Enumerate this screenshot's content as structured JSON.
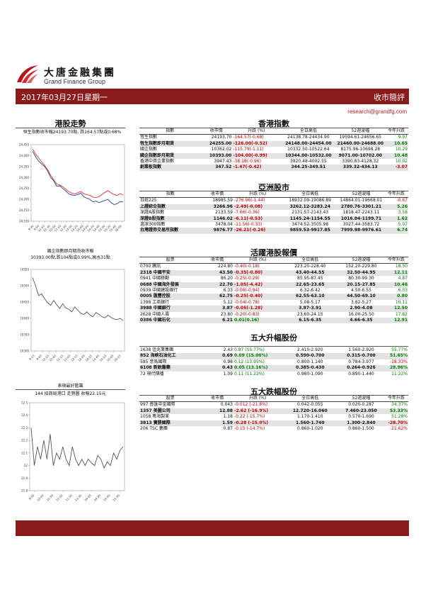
{
  "header": {
    "logo_cn": "大唐金融集團",
    "logo_en": "Grand Finance Group",
    "date": "2017年03月27日星期一",
    "report_title": "收市簡評",
    "email": "research@grandfg.com"
  },
  "left": {
    "hk_title": "港股走勢",
    "hk_caption": "恒生指數收市報24193.70點, 跌164.57點或0.68%",
    "fut_caption_1": "國企指數即月期貨收市報",
    "fut_caption_2": "10393.00點,跌104點或0.99%,高水31點",
    "stock_title": "表現最好藍籌",
    "stock_caption": "144 招商局港口 走勢圖 收報22.15元"
  },
  "hk_index": {
    "title": "香港指數",
    "headers": [
      "指數",
      "收市價",
      "升跌 (%)",
      "全日高低",
      "52週波幅",
      "今年升跌"
    ],
    "rows": [
      {
        "name": "恆生指數",
        "close": "24193.70",
        "chg": "-164.57(-0.68)",
        "range": "24138.78-24434.90",
        "w52": "19594.61-24656.65",
        "ytd": "9.97",
        "chg_c": "neg",
        "ytd_c": "pos",
        "bold": false,
        "shade": false
      },
      {
        "name": "恆生指數即月期貨",
        "close": "24255.00",
        "chg": "-126.00(-0.52)",
        "range": "24148.00-24454.00",
        "w52": "21460.00-24688.00",
        "ytd": "10.65",
        "chg_c": "neg",
        "ytd_c": "pos",
        "bold": true,
        "shade": true
      },
      {
        "name": "國企指數",
        "close": "10362.02",
        "chg": "-115.79(-1.11)",
        "range": "10332.50-10522.64",
        "w52": "8175.96-10698.28",
        "ytd": "10.29",
        "chg_c": "neg",
        "ytd_c": "pos",
        "bold": false,
        "shade": false
      },
      {
        "name": "國企指數即月期貨",
        "close": "10393.00",
        "chg": "-104.00(-0.99)",
        "range": "10344.00-10532.00",
        "w52": "9071.00-10702.00",
        "ytd": "10.48",
        "chg_c": "neg",
        "ytd_c": "pos",
        "bold": true,
        "shade": true
      },
      {
        "name": "香港中資企業指數",
        "close": "3947.43",
        "chg": "-38.18(-0.96)",
        "range": "3920.48-4002.55",
        "w52": "3390.83-4128.32",
        "ytd": "10.02",
        "chg_c": "neg",
        "ytd_c": "pos",
        "bold": false,
        "shade": false
      },
      {
        "name": "創業板指數",
        "close": "347.52",
        "chg": "-1.47(-0.42)",
        "range": "344.25-349.51",
        "w52": "339.32-434.13",
        "ytd": "-3.07",
        "chg_c": "neg",
        "ytd_c": "neg",
        "bold": true,
        "shade": true
      }
    ]
  },
  "asia": {
    "title": "亞洲股市",
    "headers": [
      "指數",
      "收市價",
      "升跌 (%)",
      "全日高低",
      "52週波幅",
      "今年升跌"
    ],
    "rows": [
      {
        "name": "日經225",
        "close": "18985.59",
        "chg": "-276.96(-1.44)",
        "range": "18932.09-19086.89",
        "w52": "14864.01-19668.01",
        "ytd": "-0.67",
        "chg_c": "neg",
        "ytd_c": "neg",
        "bold": false,
        "shade": false
      },
      {
        "name": "上證綜合指數",
        "close": "3266.96",
        "chg": "-2.49(-0.08)",
        "range": "3262.12-3283.24",
        "w52": "2780.76-3301.21",
        "ytd": "5.26",
        "chg_c": "neg",
        "ytd_c": "pos",
        "bold": true,
        "shade": true
      },
      {
        "name": "深證A股指數",
        "close": "2133.59",
        "chg": "-7.66(-0.36)",
        "range": "2131.57-2143.43",
        "w52": "1818.47-2243.11",
        "ytd": "3.58",
        "chg_c": "neg",
        "ytd_c": "pos",
        "bold": false,
        "shade": false
      },
      {
        "name": "深證B股指數",
        "close": "1146.02",
        "chg": "-6.11(-0.53)",
        "range": "1145.24-1154.55",
        "w52": "1016.84-1199.71",
        "ytd": "1.62",
        "chg_c": "neg",
        "ytd_c": "pos",
        "bold": true,
        "shade": true
      },
      {
        "name": "滬深300指數",
        "close": "3478.04",
        "chg": "-11.56(-0.33)",
        "range": "3474.52-3505.98",
        "w52": "3027.44-3583.72",
        "ytd": "5.07",
        "chg_c": "neg",
        "ytd_c": "pos",
        "bold": false,
        "shade": false
      },
      {
        "name": "台灣證券交易所指數",
        "close": "9876.77",
        "chg": "-26.21(-0.26)",
        "range": "9859.53-9917.85",
        "w52": "7999.98-9976.61",
        "ytd": "6.74",
        "chg_c": "neg",
        "ytd_c": "pos",
        "bold": true,
        "shade": true
      }
    ]
  },
  "active": {
    "title": "活躍港股報價",
    "headers": [
      "股票",
      "收市價",
      "升跌 (%)",
      "全日高低",
      "52週波幅",
      "今年升跌"
    ],
    "rows": [
      {
        "name": "0700 騰訊",
        "close": "224.80",
        "chg": "-0.40(-0.18)",
        "range": "223.20-228.40",
        "w52": "152.20-229.80",
        "ytd": "18.50",
        "chg_c": "neg",
        "ytd_c": "pos",
        "bold": false,
        "shade": false
      },
      {
        "name": "2318 中國平安",
        "close": "43.50",
        "chg": "-0.35(-0.80)",
        "range": "43.40-44.55",
        "w52": "32.50-44.95",
        "ytd": "12.11",
        "chg_c": "neg",
        "ytd_c": "pos",
        "bold": true,
        "shade": true
      },
      {
        "name": "0941 中國移動",
        "close": "86.20",
        "chg": "-0.25(-0.29)",
        "range": "85.95-87.45",
        "w52": "80.30-99.30",
        "ytd": "4.87",
        "chg_c": "neg",
        "ytd_c": "pos",
        "bold": false,
        "shade": false
      },
      {
        "name": "0688 中國海外發展",
        "close": "22.70",
        "chg": "-1.05(-4.42)",
        "range": "22.65-23.65",
        "w52": "20.15-27.85",
        "ytd": "10.46",
        "chg_c": "neg",
        "ytd_c": "pos",
        "bold": true,
        "shade": true
      },
      {
        "name": "0939 中國建設銀行",
        "close": "6.33",
        "chg": "-0.06(-0.94)",
        "range": "6.32-6.42",
        "w52": "4.50-6.55",
        "ytd": "6.03",
        "chg_c": "neg",
        "ytd_c": "pos",
        "bold": false,
        "shade": false
      },
      {
        "name": "0005 匯豐控股",
        "close": "62.75",
        "chg": "-0.25(-0.40)",
        "range": "62.55-63.10",
        "w52": "44.50-69.10",
        "ytd": "0.80",
        "chg_c": "neg",
        "ytd_c": "pos",
        "bold": true,
        "shade": true
      },
      {
        "name": "1398 工商銀行",
        "close": "5.12",
        "chg": "-0.04(-0.78)",
        "range": "5.08-5.17",
        "w52": "3.82-5.27",
        "ytd": "10.11",
        "chg_c": "neg",
        "ytd_c": "pos",
        "bold": false,
        "shade": false
      },
      {
        "name": "3988 中國銀行",
        "close": "3.87",
        "chg": "-0.05(-1.28)",
        "range": "3.87-3.91",
        "w52": "2.90-4.08",
        "ytd": "12.50",
        "chg_c": "neg",
        "ytd_c": "pos",
        "bold": true,
        "shade": true
      },
      {
        "name": "2628 中國人壽",
        "close": "23.80",
        "chg": "-0.20(-0.83)",
        "range": "23.60-24.15",
        "w52": "16.00-25.50",
        "ytd": "17.82",
        "chg_c": "neg",
        "ytd_c": "pos",
        "bold": false,
        "shade": false
      },
      {
        "name": "0386 中國石化",
        "close": "6.21",
        "chg": "0.01(0.16)",
        "range": "6.15-6.35",
        "w52": "4.66-6.35",
        "ytd": "12.91",
        "chg_c": "pos",
        "ytd_c": "pos",
        "bold": true,
        "shade": true
      }
    ]
  },
  "gainers": {
    "title": "五大升幅股份",
    "rows": [
      {
        "name": "1638 佳兆業集團",
        "close": "2.43",
        "chg": "0.87 (55.77%)",
        "range": "2.410-2.920",
        "w52": "1.560-2.920",
        "ytd": "55.77%",
        "chg_c": "pos",
        "ytd_c": "pos",
        "bold": false,
        "shade": false
      },
      {
        "name": "852 海峽石油化工",
        "close": "0.69",
        "chg": "0.09 (15.00%)",
        "range": "0.590-0.700",
        "w52": "0.315-0.700",
        "ytd": "51.65%",
        "chg_c": "pos",
        "ytd_c": "pos",
        "bold": true,
        "shade": true
      },
      {
        "name": "585 意馬國際",
        "close": "0.98",
        "chg": "0.12 (13.95%)",
        "range": "0.800-1.140",
        "w52": "0.784-3.977",
        "ytd": "-18.33%",
        "chg_c": "pos",
        "ytd_c": "neg",
        "bold": false,
        "shade": false
      },
      {
        "name": "6108 新銳醫藥",
        "close": "0.43",
        "chg": "0.05 (13.16%)",
        "range": "0.385-0.430",
        "w52": "0.264-0.926",
        "ytd": "28.96%",
        "chg_c": "pos",
        "ytd_c": "pos",
        "bold": true,
        "shade": true
      },
      {
        "name": "72 現代傳播",
        "close": "1.09",
        "chg": "0.11 (11.22%)",
        "range": "0.980-1.090",
        "w52": "0.890-1.440",
        "ytd": "11.22%",
        "chg_c": "pos",
        "ytd_c": "pos",
        "bold": false,
        "shade": false
      }
    ]
  },
  "losers": {
    "title": "五大跌幅股份",
    "headers": [
      "股票",
      "收市價",
      "升跌 (%)",
      "全日高低",
      "52週波幅",
      "今年升跌"
    ],
    "rows": [
      {
        "name": "997 普匯中金國際",
        "close": "0.043",
        "chg": "-0.012 (-21.8%)",
        "range": "0.042-0.055",
        "w52": "0.020-0.287",
        "ytd": "34.37%",
        "chg_c": "neg",
        "ytd_c": "pos",
        "bold": false,
        "shade": false
      },
      {
        "name": "1357 美圖公司",
        "close": "12.88",
        "chg": "-2.62 (-16.9%)",
        "range": "12.720-16.060",
        "w52": "7.460-23.050",
        "ytd": "53.33%",
        "chg_c": "neg",
        "ytd_c": "pos",
        "bold": true,
        "shade": true
      },
      {
        "name": "1058 粵海製革",
        "close": "1.18",
        "chg": "-0.22 (-15.7%)",
        "range": "1.170-1.410",
        "w52": "0.570-1.690",
        "ytd": "51.28%",
        "chg_c": "neg",
        "ytd_c": "pos",
        "bold": false,
        "shade": false
      },
      {
        "name": "3813 寶勝國際",
        "close": "1.59",
        "chg": "-0.28 (-15.0%)",
        "range": "1.560-1.740",
        "w52": "1.300-2.840",
        "ytd": "-28.70%",
        "chg_c": "neg",
        "ytd_c": "neg",
        "bold": true,
        "shade": true
      },
      {
        "name": "206 TSC 集團",
        "close": "0.87",
        "chg": "-0.15 (-14.7%)",
        "range": "0.860-1.020",
        "w52": "0.860-1.500",
        "ytd": "-21.62%",
        "chg_c": "neg",
        "ytd_c": "neg",
        "bold": false,
        "shade": false
      }
    ]
  },
  "chart_data": [
    {
      "type": "line",
      "yticks": [
        "24,100",
        "24,150",
        "24,200",
        "24,250",
        "24,300",
        "24,350",
        "24,400",
        "24,450"
      ],
      "ylim": [
        24100,
        24450
      ],
      "xticks": [
        "9:30",
        "9:50",
        "10:10",
        "10:30",
        "10:50",
        "11:10",
        "11:30",
        "13:00",
        "13:20",
        "13:40",
        "14:00",
        "14:20",
        "14:40",
        "15:00",
        "15:20",
        "15:40",
        "16:00"
      ],
      "series": [
        {
          "color": "#1f3f99",
          "values": [
            24420,
            24395,
            24375,
            24362,
            24350,
            24330,
            24300,
            24285,
            24260,
            24262,
            24250,
            24238,
            24225,
            24220,
            24218,
            24222,
            24228,
            24212,
            24205,
            24200,
            24188,
            24192,
            24185,
            24190,
            24195,
            24200,
            24185,
            24176,
            24180,
            24190,
            24188
          ]
        },
        {
          "color": "#e03030",
          "values": [
            24430,
            24408,
            24390,
            24372,
            24355,
            24335,
            24310,
            24290,
            24270,
            24266,
            24258,
            24246,
            24235,
            24228,
            24225,
            24230,
            24236,
            24225,
            24222,
            24218,
            24210,
            24208,
            24212,
            24222,
            24232,
            24240,
            24230,
            24222,
            24218,
            24226,
            24220
          ]
        }
      ]
    },
    {
      "type": "line",
      "yticks": [
        "10300",
        "10350",
        "10400",
        "10450",
        "10500",
        "10550"
      ],
      "ylim": [
        10300,
        10550
      ],
      "xticks": [
        "9:15",
        "9:45",
        "10:15",
        "10:45",
        "11:15",
        "11:45",
        "13:15",
        "13:45",
        "14:15",
        "14:45",
        "15:15",
        "15:45",
        "16:15"
      ],
      "series": [
        {
          "color": "#555555",
          "values": [
            10525,
            10500,
            10470,
            10475,
            10460,
            10448,
            10440,
            10455,
            10442,
            10430,
            10445,
            10432,
            10428,
            10420,
            10435,
            10425,
            10415,
            10412,
            10420,
            10410,
            10405,
            10418,
            10412,
            10405,
            10402,
            10410,
            10403,
            10398,
            10396,
            10400,
            10393
          ]
        }
      ]
    },
    {
      "type": "line",
      "yticks": [
        "21.8",
        "21.9",
        "22",
        "22.1",
        "22.2",
        "22.3",
        "22.4",
        "22.5"
      ],
      "ylim": [
        21.8,
        22.5
      ],
      "xticks": [
        "9:30",
        "10:00",
        "10:30",
        "11:00",
        "11:30",
        "13:30",
        "14:00",
        "14:30",
        "15:00",
        "15:30"
      ],
      "series": [
        {
          "color": "#555555",
          "values": [
            22.3,
            22.0,
            22.15,
            22.05,
            22.2,
            22.05,
            22.25,
            22.0,
            22.1,
            22.05,
            22.15,
            22.05,
            22.0,
            22.15,
            22.05,
            22.0,
            22.05,
            22.0,
            22.05,
            22.02,
            22.0,
            22.08,
            22.05,
            21.98,
            22.03,
            22.0,
            22.1,
            22.05,
            22.12,
            22.15
          ]
        }
      ]
    }
  ]
}
